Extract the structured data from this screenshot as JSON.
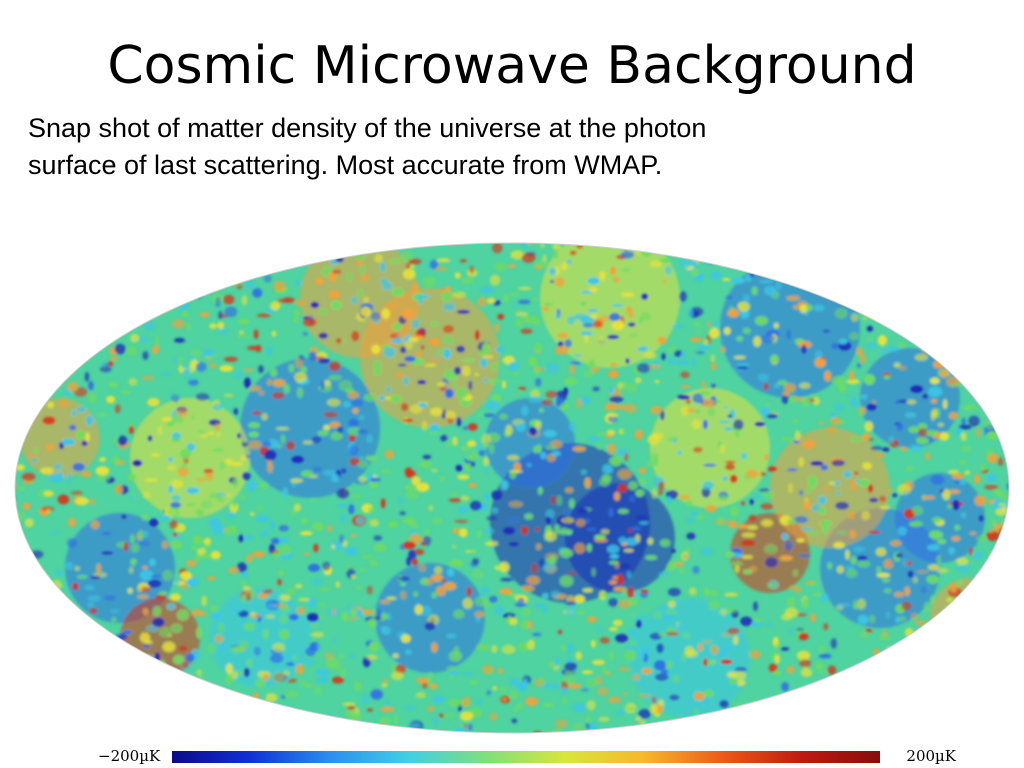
{
  "slide": {
    "title": "Cosmic Microwave Background",
    "body": "Snap shot of matter density of the universe at the photon\nsurface of last scattering.  Most accurate from WMAP."
  },
  "colorbar": {
    "min_label": "−200µK",
    "max_label": "200µK",
    "colors": [
      "#0b0b8a",
      "#1030d8",
      "#2a8ef0",
      "#3fd0e6",
      "#7fe07a",
      "#d8e63a",
      "#f7b82a",
      "#ee5a17",
      "#c01a10",
      "#8a0b0b"
    ]
  },
  "map": {
    "colors": {
      "dark_blue": "#1b2bb8",
      "blue": "#2f6fe6",
      "cyan": "#3cc6e8",
      "green": "#6fdb62",
      "yellow": "#e9e23a",
      "orange": "#f2a13a",
      "red": "#d9331a"
    }
  }
}
